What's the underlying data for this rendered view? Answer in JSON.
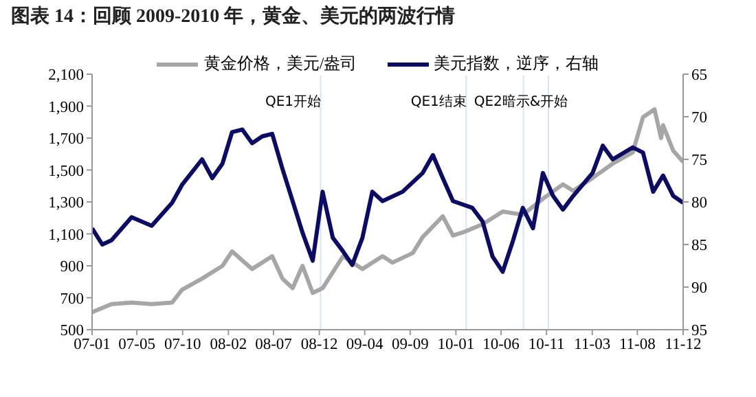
{
  "chart_data": {
    "type": "line",
    "title": "图表 14：回顾 2009-2010 年，黄金、美元的两波行情",
    "xlim": [
      "2007-01",
      "2011-12"
    ],
    "xticks": [
      {
        "value": "2007-01-01",
        "label": "07-01"
      },
      {
        "value": "2007-05-17",
        "label": "07-05"
      },
      {
        "value": "2007-10-03",
        "label": "07-10"
      },
      {
        "value": "2008-02-19",
        "label": "08-02"
      },
      {
        "value": "2008-07-05",
        "label": "08-07"
      },
      {
        "value": "2008-11-21",
        "label": "08-12"
      },
      {
        "value": "2009-04-08",
        "label": "09-04"
      },
      {
        "value": "2009-08-24",
        "label": "09-09"
      },
      {
        "value": "2010-01-10",
        "label": "10-01"
      },
      {
        "value": "2010-05-27",
        "label": "10-06"
      },
      {
        "value": "2010-10-12",
        "label": "10-11"
      },
      {
        "value": "2011-02-28",
        "label": "11-03"
      },
      {
        "value": "2011-07-15",
        "label": "11-08"
      },
      {
        "value": "2011-12-01",
        "label": "11-12"
      }
    ],
    "ylim": [
      500,
      2100
    ],
    "yticks": [
      {
        "value": 500,
        "label": "500"
      },
      {
        "value": 700,
        "label": "700"
      },
      {
        "value": 900,
        "label": "900"
      },
      {
        "value": 1100,
        "label": "1,100"
      },
      {
        "value": 1300,
        "label": "1,300"
      },
      {
        "value": 1500,
        "label": "1,500"
      },
      {
        "value": 1700,
        "label": "1,700"
      },
      {
        "value": 1900,
        "label": "1,900"
      },
      {
        "value": 2100,
        "label": "2,100"
      }
    ],
    "y2lim": [
      95,
      65
    ],
    "y2ticks": [
      95,
      90,
      85,
      80,
      75,
      70,
      65
    ],
    "legend": "top",
    "series": [
      {
        "name": "黄金价格，美元/盎司",
        "color": "#a6a6a6",
        "x": [
          "2007-01",
          "2007-03",
          "2007-05",
          "2007-07",
          "2007-09",
          "2007-10",
          "2007-12",
          "2008-02",
          "2008-03",
          "2008-05",
          "2008-07",
          "2008-08",
          "2008-09",
          "2008-10",
          "2008-11",
          "2008-12",
          "2009-02",
          "2009-04",
          "2009-06",
          "2009-07",
          "2009-09",
          "2009-10",
          "2009-12",
          "2010-01",
          "2010-02",
          "2010-04",
          "2010-06",
          "2010-08",
          "2010-10",
          "2010-12",
          "2011-01",
          "2011-03",
          "2011-05",
          "2011-07",
          "2011-08",
          "2011-09-05",
          "2011-09-25",
          "2011-10",
          "2011-11",
          "2011-12"
        ],
        "values": [
          610,
          660,
          670,
          660,
          670,
          750,
          820,
          900,
          990,
          880,
          960,
          820,
          760,
          900,
          730,
          760,
          960,
          880,
          960,
          920,
          980,
          1080,
          1210,
          1090,
          1110,
          1160,
          1240,
          1220,
          1320,
          1410,
          1370,
          1450,
          1540,
          1610,
          1830,
          1880,
          1700,
          1780,
          1620,
          1550
        ]
      },
      {
        "name": "美元指数，逆序，右轴",
        "color": "#0c0c66",
        "axis": "y2",
        "x": [
          "2007-01",
          "2007-02",
          "2007-03",
          "2007-05",
          "2007-07",
          "2007-09",
          "2007-10",
          "2007-12",
          "2008-01",
          "2008-02",
          "2008-03",
          "2008-04",
          "2008-05",
          "2008-06",
          "2008-07",
          "2008-08",
          "2008-09",
          "2008-10",
          "2008-11",
          "2008-12",
          "2009-01",
          "2009-02",
          "2009-03",
          "2009-04",
          "2009-05",
          "2009-06",
          "2009-08",
          "2009-10",
          "2009-11",
          "2009-12",
          "2010-01",
          "2010-03",
          "2010-04",
          "2010-05",
          "2010-06",
          "2010-07",
          "2010-08",
          "2010-09",
          "2010-10",
          "2010-11",
          "2010-12",
          "2011-01",
          "2011-03",
          "2011-04",
          "2011-05",
          "2011-07",
          "2011-08",
          "2011-09",
          "2011-10",
          "2011-11",
          "2011-12"
        ],
        "values": [
          83.1,
          85.0,
          84.5,
          81.8,
          82.8,
          80.1,
          78.0,
          75.0,
          77.2,
          75.5,
          71.8,
          71.5,
          73.1,
          72.3,
          72.0,
          76.1,
          79.9,
          83.6,
          86.9,
          78.8,
          84.2,
          85.8,
          87.4,
          84.2,
          78.8,
          79.9,
          78.8,
          76.6,
          74.5,
          77.2,
          79.9,
          80.7,
          82.3,
          86.4,
          88.2,
          84.7,
          80.7,
          83.1,
          76.6,
          79.3,
          80.9,
          79.3,
          76.6,
          73.4,
          75.0,
          73.6,
          74.2,
          78.8,
          76.9,
          79.3,
          80.1
        ]
      }
    ],
    "ref_lines": [
      {
        "axis": "x",
        "value": "2008-11-25",
        "label": "QE1开始",
        "color": "#d6e4f4"
      },
      {
        "axis": "x",
        "value": "2010-02-10",
        "label": "QE1结束",
        "color": "#d6e4f4"
      },
      {
        "axis": "x",
        "value": "2010-08-03",
        "label": null,
        "color": "#d6e4f4"
      },
      {
        "axis": "x",
        "value": "2010-10-18",
        "label": "QE2暗示&开始",
        "color": "#d6e4f4"
      }
    ]
  }
}
